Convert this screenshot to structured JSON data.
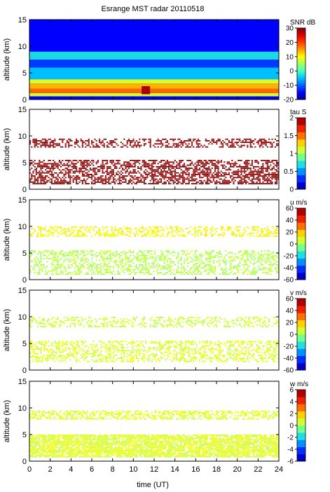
{
  "figure": {
    "title": "Esrange MST radar 20110518",
    "xlabel": "time (UT)",
    "xticks": [
      "0",
      "2",
      "4",
      "6",
      "8",
      "10",
      "12",
      "14",
      "16",
      "18",
      "20",
      "22",
      "24"
    ]
  },
  "chart_data": [
    {
      "type": "heatmap",
      "variable": "SNR",
      "ylabel": "altitude (km)",
      "colorbar_label": "SNR dB",
      "xlim": [
        0,
        24
      ],
      "ylim": [
        0,
        15
      ],
      "yticks": [
        "0",
        "5",
        "10",
        "15"
      ],
      "clim": [
        -20,
        30
      ],
      "colorbar_ticks": [
        "30",
        "20",
        "10",
        "0",
        "-10",
        "-20"
      ],
      "layers": [
        {
          "from_km": 0.6,
          "to_km": 1.2,
          "value": 8
        },
        {
          "from_km": 1.2,
          "to_km": 2.0,
          "value": 18
        },
        {
          "from_km": 2.0,
          "to_km": 3.0,
          "value": 14
        },
        {
          "from_km": 3.0,
          "to_km": 3.8,
          "value": 8
        },
        {
          "from_km": 3.8,
          "to_km": 6.0,
          "value": -5
        },
        {
          "from_km": 6.0,
          "to_km": 7.5,
          "value": -12
        },
        {
          "from_km": 7.5,
          "to_km": 9.0,
          "value": -3
        },
        {
          "from_km": 9.0,
          "to_km": 15.0,
          "value": -15
        }
      ],
      "features": [
        {
          "time": 11.2,
          "from_km": 1.0,
          "to_km": 2.5,
          "value": 28
        }
      ]
    },
    {
      "type": "heatmap",
      "variable": "tau",
      "ylabel": "altitude (km)",
      "colorbar_label": "tau S",
      "xlim": [
        0,
        24
      ],
      "ylim": [
        0,
        15
      ],
      "yticks": [
        "0",
        "5",
        "10",
        "15"
      ],
      "clim": [
        0,
        2
      ],
      "colorbar_ticks": [
        "2",
        "1.5",
        "1",
        "0.5",
        "0"
      ],
      "layers": [
        {
          "from_km": 1.0,
          "to_km": 5.5,
          "value": 2.0,
          "coverage": 0.6
        },
        {
          "from_km": 8.0,
          "to_km": 9.5,
          "value": 2.0,
          "coverage": 0.5
        }
      ]
    },
    {
      "type": "heatmap",
      "variable": "u",
      "ylabel": "altitude (km)",
      "colorbar_label": "u m/s",
      "xlim": [
        0,
        24
      ],
      "ylim": [
        0,
        15
      ],
      "yticks": [
        "0",
        "5",
        "10",
        "15"
      ],
      "clim": [
        -60,
        60
      ],
      "colorbar_ticks": [
        "60",
        "40",
        "20",
        "0",
        "-20",
        "-40",
        "-60"
      ],
      "layers": [
        {
          "from_km": 1.0,
          "to_km": 5.5,
          "value": 3,
          "coverage": 0.45
        },
        {
          "from_km": 8.0,
          "to_km": 10.0,
          "value": 12,
          "coverage": 0.45
        }
      ]
    },
    {
      "type": "heatmap",
      "variable": "v",
      "ylabel": "altitude (km)",
      "colorbar_label": "v m/s",
      "xlim": [
        0,
        24
      ],
      "ylim": [
        0,
        15
      ],
      "yticks": [
        "0",
        "5",
        "10",
        "15"
      ],
      "clim": [
        -60,
        60
      ],
      "colorbar_ticks": [
        "60",
        "40",
        "20",
        "0",
        "-20",
        "-40",
        "-60"
      ],
      "layers": [
        {
          "from_km": 1.5,
          "to_km": 5.5,
          "value": 8,
          "coverage": 0.45
        },
        {
          "from_km": 8.0,
          "to_km": 10.0,
          "value": 6,
          "coverage": 0.4
        }
      ]
    },
    {
      "type": "heatmap",
      "variable": "w",
      "ylabel": "altitude (km)",
      "colorbar_label": "w m/s",
      "xlim": [
        0,
        24
      ],
      "ylim": [
        0,
        15
      ],
      "yticks": [
        "0",
        "5",
        "10",
        "15"
      ],
      "clim": [
        -6,
        6
      ],
      "colorbar_ticks": [
        "6",
        "4",
        "2",
        "0",
        "-2",
        "-4",
        "-6"
      ],
      "layers": [
        {
          "from_km": 0.8,
          "to_km": 5.0,
          "value": 0.8,
          "coverage": 0.85
        },
        {
          "from_km": 8.0,
          "to_km": 9.5,
          "value": 0.8,
          "coverage": 0.55
        }
      ]
    }
  ]
}
